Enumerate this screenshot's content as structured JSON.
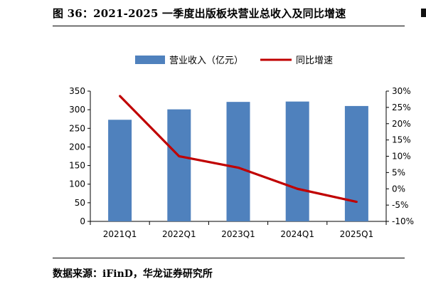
{
  "figure_title": "图 36：2021-2025 一季度出版板块营业总收入及同比增速",
  "source_note": "数据来源：iFinD，华龙证券研究所",
  "chart_data": {
    "type": "bar",
    "categories": [
      "2021Q1",
      "2022Q1",
      "2023Q1",
      "2024Q1",
      "2025Q1"
    ],
    "series": [
      {
        "name": "营业收入（亿元）",
        "type": "bar",
        "axis": "left",
        "color": "#4f81bd",
        "values": [
          273,
          301,
          321,
          322,
          310
        ]
      },
      {
        "name": "同比增速",
        "type": "line",
        "axis": "right",
        "color": "#c00000",
        "values": [
          28.5,
          10.0,
          6.5,
          0.0,
          -4.0
        ]
      }
    ],
    "y_left": {
      "min": 0,
      "max": 350,
      "ticks": [
        "0",
        "50",
        "100",
        "150",
        "200",
        "250",
        "300",
        "350"
      ]
    },
    "y_right": {
      "min": -10,
      "max": 30,
      "ticks": [
        "-10%",
        "-5%",
        "0%",
        "5%",
        "10%",
        "15%",
        "20%",
        "25%",
        "30%"
      ]
    },
    "legend_position": "top",
    "grid": false
  }
}
